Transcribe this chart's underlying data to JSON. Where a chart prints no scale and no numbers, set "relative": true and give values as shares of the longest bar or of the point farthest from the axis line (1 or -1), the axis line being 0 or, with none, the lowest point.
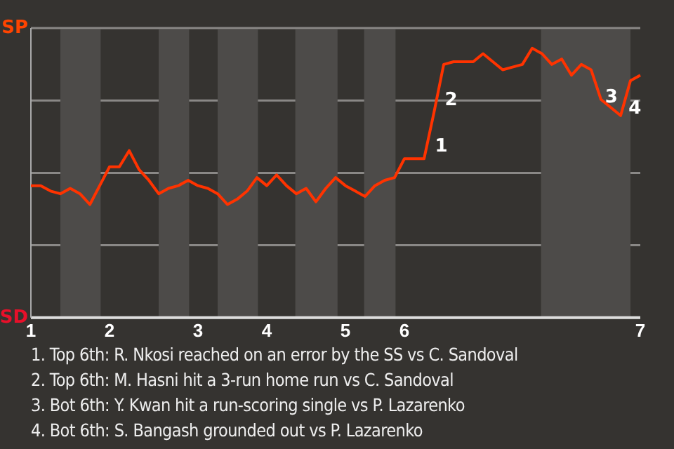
{
  "chart_data": {
    "type": "line",
    "relative": true,
    "categories": [
      "1",
      null,
      null,
      null,
      null,
      null,
      null,
      null,
      "2",
      null,
      null,
      null,
      null,
      null,
      null,
      null,
      null,
      "3",
      null,
      null,
      null,
      null,
      null,
      null,
      "4",
      null,
      null,
      null,
      null,
      null,
      null,
      null,
      "5",
      null,
      null,
      null,
      null,
      null,
      "6",
      null,
      null,
      null,
      null,
      null,
      null,
      null,
      null,
      null,
      null,
      null,
      null,
      null,
      null,
      null,
      null,
      null,
      null,
      null,
      null,
      null,
      null,
      null,
      "7"
    ],
    "series": [
      {
        "color": "#ff3300",
        "values": [
          0.49,
          0.49,
          0.47,
          0.46,
          0.48,
          0.46,
          0.42,
          0.49,
          0.56,
          0.56,
          0.62,
          0.55,
          0.51,
          0.46,
          0.48,
          0.49,
          0.51,
          0.49,
          0.48,
          0.46,
          0.42,
          0.44,
          0.47,
          0.52,
          0.49,
          0.53,
          0.49,
          0.46,
          0.48,
          0.43,
          0.48,
          0.52,
          0.49,
          0.47,
          0.45,
          0.49,
          0.51,
          0.52,
          0.59,
          0.59,
          0.59,
          0.76,
          0.94,
          0.95,
          0.95,
          0.95,
          0.98,
          0.95,
          0.92,
          0.93,
          0.94,
          1,
          0.98,
          0.94,
          0.96,
          0.9,
          0.94,
          0.92,
          0.81,
          0.78,
          0.75,
          0.88,
          0.9
        ]
      }
    ],
    "grid": "y",
    "marker": "none",
    "line_style": "solid",
    "annotations": [
      "SP",
      "SD",
      "1",
      "2",
      "3",
      "4",
      "1. Top 6th: R. Nkosi reached on an error by the SS vs C. Sandoval",
      "2. Top 6th: M. Hasni hit a 3-run home run vs C. Sandoval",
      "3. Bot 6th: Y. Kwan hit a run-scoring single vs P. Lazarenko",
      "4. Bot 6th: S. Bangash grounded out vs P. Lazarenko"
    ]
  }
}
